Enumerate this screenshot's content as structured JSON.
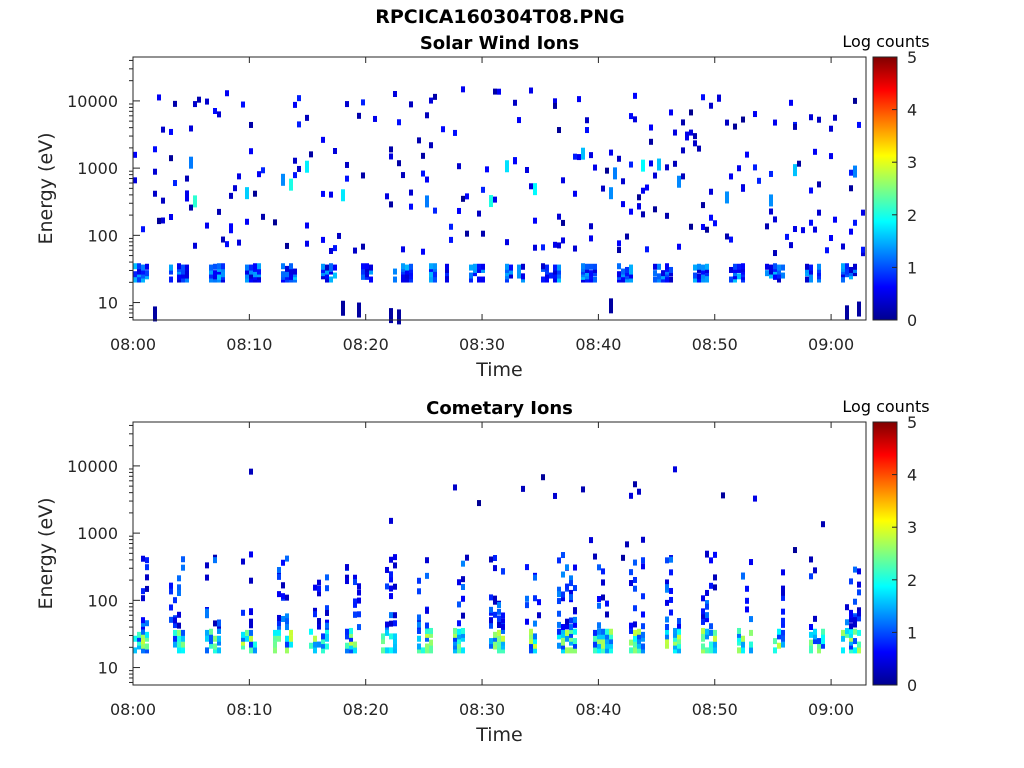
{
  "figure": {
    "filename_title": "RPCICA160304T08.PNG"
  },
  "colorscale": {
    "stops": [
      "#00008f",
      "#0000ff",
      "#0080ff",
      "#00ffff",
      "#80ff80",
      "#ffff00",
      "#ff8000",
      "#ff0000",
      "#800000"
    ],
    "empty_color": "#ffffff"
  },
  "chart_data": [
    {
      "type": "heatmap",
      "title": "Solar Wind Ions",
      "xlabel": "Time",
      "ylabel": "Energy (eV)",
      "x_tick_labels": [
        "08:00",
        "08:10",
        "08:20",
        "08:30",
        "08:40",
        "08:50",
        "09:00"
      ],
      "x_ticks_minutes": [
        0,
        10,
        20,
        30,
        40,
        50,
        60
      ],
      "xlim_minutes": [
        0,
        63
      ],
      "y_scale": "log",
      "ylim": [
        5.5,
        45000
      ],
      "y_ticks": [
        10,
        100,
        1000,
        10000
      ],
      "y_tick_labels": [
        "10",
        "100",
        "1000",
        "10000"
      ],
      "colorbar": {
        "label": "Log counts",
        "range": [
          0,
          5
        ],
        "ticks": [
          "0",
          "1",
          "2",
          "3",
          "4",
          "5"
        ]
      },
      "pattern": {
        "band_energy_eV": [
          22,
          38
        ],
        "band_log_counts": [
          0.3,
          1.6
        ],
        "band_cycle_minutes": 3.2,
        "scatter_energy_eV": [
          50,
          15000
        ],
        "scatter_log_counts": [
          0.0,
          0.8
        ],
        "beam_energy_eV": [
          350,
          1900
        ],
        "beam_log_counts": [
          1.2,
          2.1
        ],
        "low_energy_spikes_eV": [
          6,
          14
        ]
      }
    },
    {
      "type": "heatmap",
      "title": "Cometary Ions",
      "xlabel": "Time",
      "ylabel": "Energy (eV)",
      "x_tick_labels": [
        "08:00",
        "08:10",
        "08:20",
        "08:30",
        "08:40",
        "08:50",
        "09:00"
      ],
      "x_ticks_minutes": [
        0,
        10,
        20,
        30,
        40,
        50,
        60
      ],
      "xlim_minutes": [
        0,
        63
      ],
      "y_scale": "log",
      "ylim": [
        5.5,
        45000
      ],
      "y_ticks": [
        10,
        100,
        1000,
        10000
      ],
      "y_tick_labels": [
        "10",
        "100",
        "1000",
        "10000"
      ],
      "colorbar": {
        "label": "Log counts",
        "range": [
          0,
          5
        ],
        "ticks": [
          "0",
          "1",
          "2",
          "3",
          "4",
          "5"
        ]
      },
      "pattern": {
        "band_energy_eV": [
          18,
          40
        ],
        "band_log_counts": [
          0.8,
          2.9
        ],
        "band_cycle_minutes": 3.05,
        "plume_energy_eV": [
          40,
          500
        ],
        "plume_log_counts": [
          0.2,
          1.3
        ],
        "scatter_energy_eV": [
          300,
          10000
        ],
        "scatter_log_counts": [
          0.0,
          0.5
        ]
      }
    }
  ]
}
